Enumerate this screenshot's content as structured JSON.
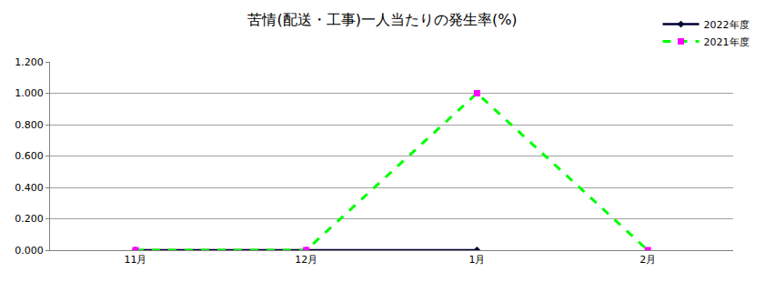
{
  "chart_data": {
    "type": "line",
    "title": "苦情(配送・工事)一人当たりの発生率(%)",
    "categories": [
      "11月",
      "12月",
      "1月",
      "2月"
    ],
    "series": [
      {
        "name": "2022年度",
        "color": "#000033",
        "marker": "diamond",
        "line_style": "solid",
        "values": [
          0,
          0,
          0,
          null
        ]
      },
      {
        "name": "2021年度",
        "color": "#00ff00",
        "marker": "square",
        "line_style": "dash",
        "values": [
          0,
          0,
          1,
          0
        ]
      }
    ],
    "ylim": [
      0,
      1.2
    ],
    "yticks": [
      {
        "value": 0,
        "label": "0.000"
      },
      {
        "value": 0.2,
        "label": "0.200"
      },
      {
        "value": 0.4,
        "label": "0.400"
      },
      {
        "value": 0.6,
        "label": "0.600"
      },
      {
        "value": 0.8,
        "label": "0.800"
      },
      {
        "value": 1,
        "label": "1.000"
      },
      {
        "value": 1.2,
        "label": "1.200"
      }
    ],
    "grid": true,
    "legend": "top right"
  }
}
